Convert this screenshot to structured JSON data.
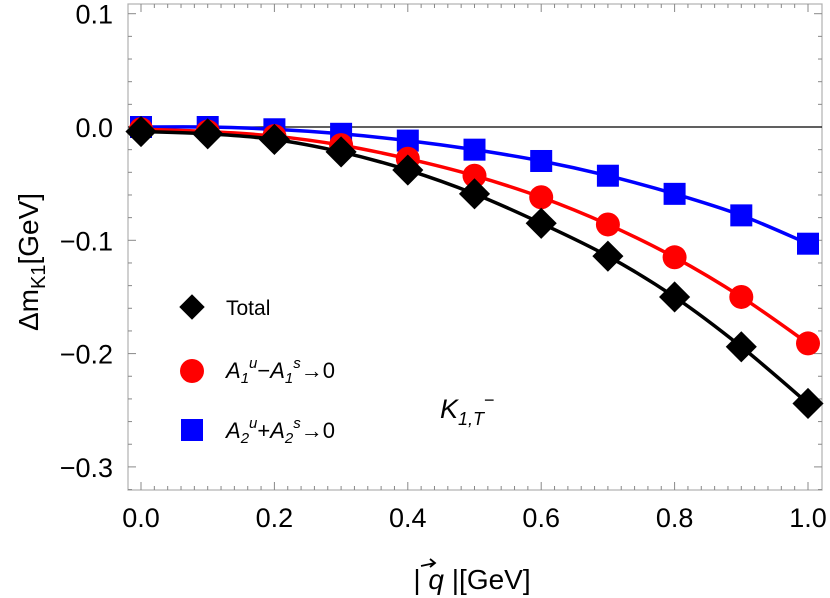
{
  "chart_data": {
    "type": "scatter",
    "title": "",
    "xlabel": "| q⃗ |[GeV]",
    "ylabel": "Δm_K1[GeV]",
    "xlim": [
      0.0,
      1.0
    ],
    "ylim": [
      -0.3,
      0.1
    ],
    "xticks": [
      "0.0",
      "0.2",
      "0.4",
      "0.6",
      "0.8",
      "1.0"
    ],
    "yticks": [
      "0.1",
      "0.0",
      "-0.1",
      "-0.2",
      "-0.3"
    ],
    "x": [
      0.0,
      0.1,
      0.2,
      0.3,
      0.4,
      0.5,
      0.6,
      0.7,
      0.8,
      0.9,
      1.0
    ],
    "series": [
      {
        "name": "Total",
        "marker": "diamond",
        "color": "#000000",
        "values": [
          -0.004,
          -0.006,
          -0.011,
          -0.022,
          -0.038,
          -0.059,
          -0.085,
          -0.114,
          -0.15,
          -0.194,
          -0.244
        ]
      },
      {
        "name": "A1u−A1s→0",
        "marker": "circle",
        "color": "#ff0000",
        "values": [
          -0.002,
          -0.004,
          -0.008,
          -0.016,
          -0.028,
          -0.043,
          -0.062,
          -0.086,
          -0.115,
          -0.15,
          -0.191
        ]
      },
      {
        "name": "A2u+A2s→0",
        "marker": "square",
        "color": "#0000ff",
        "values": [
          0.0,
          0.0,
          -0.002,
          -0.006,
          -0.012,
          -0.02,
          -0.03,
          -0.043,
          -0.059,
          -0.078,
          -0.103
        ]
      }
    ],
    "legend_position": "bottom-left",
    "grid": false,
    "annotation": "K1,T−"
  },
  "text": {
    "ylabel_main": "Δm",
    "ylabel_sub": "K1",
    "ylabel_unit": "[GeV]",
    "xlabel_left": "| ",
    "xlabel_q": "q",
    "xlabel_right": " |[GeV]",
    "legend_total": "Total",
    "legend_a1": {
      "a": "A",
      "sub1": "1",
      "sup1": "u",
      "op": "−",
      "a2": "A",
      "sub2": "1",
      "sup2": "s",
      "tail": "→0"
    },
    "legend_a2": {
      "a": "A",
      "sub1": "2",
      "sup1": "u",
      "op": "+",
      "a2": "A",
      "sub2": "2",
      "sup2": "s",
      "tail": "→0"
    },
    "annot_k": "K",
    "annot_sub": "1,T",
    "annot_sup": "−"
  }
}
